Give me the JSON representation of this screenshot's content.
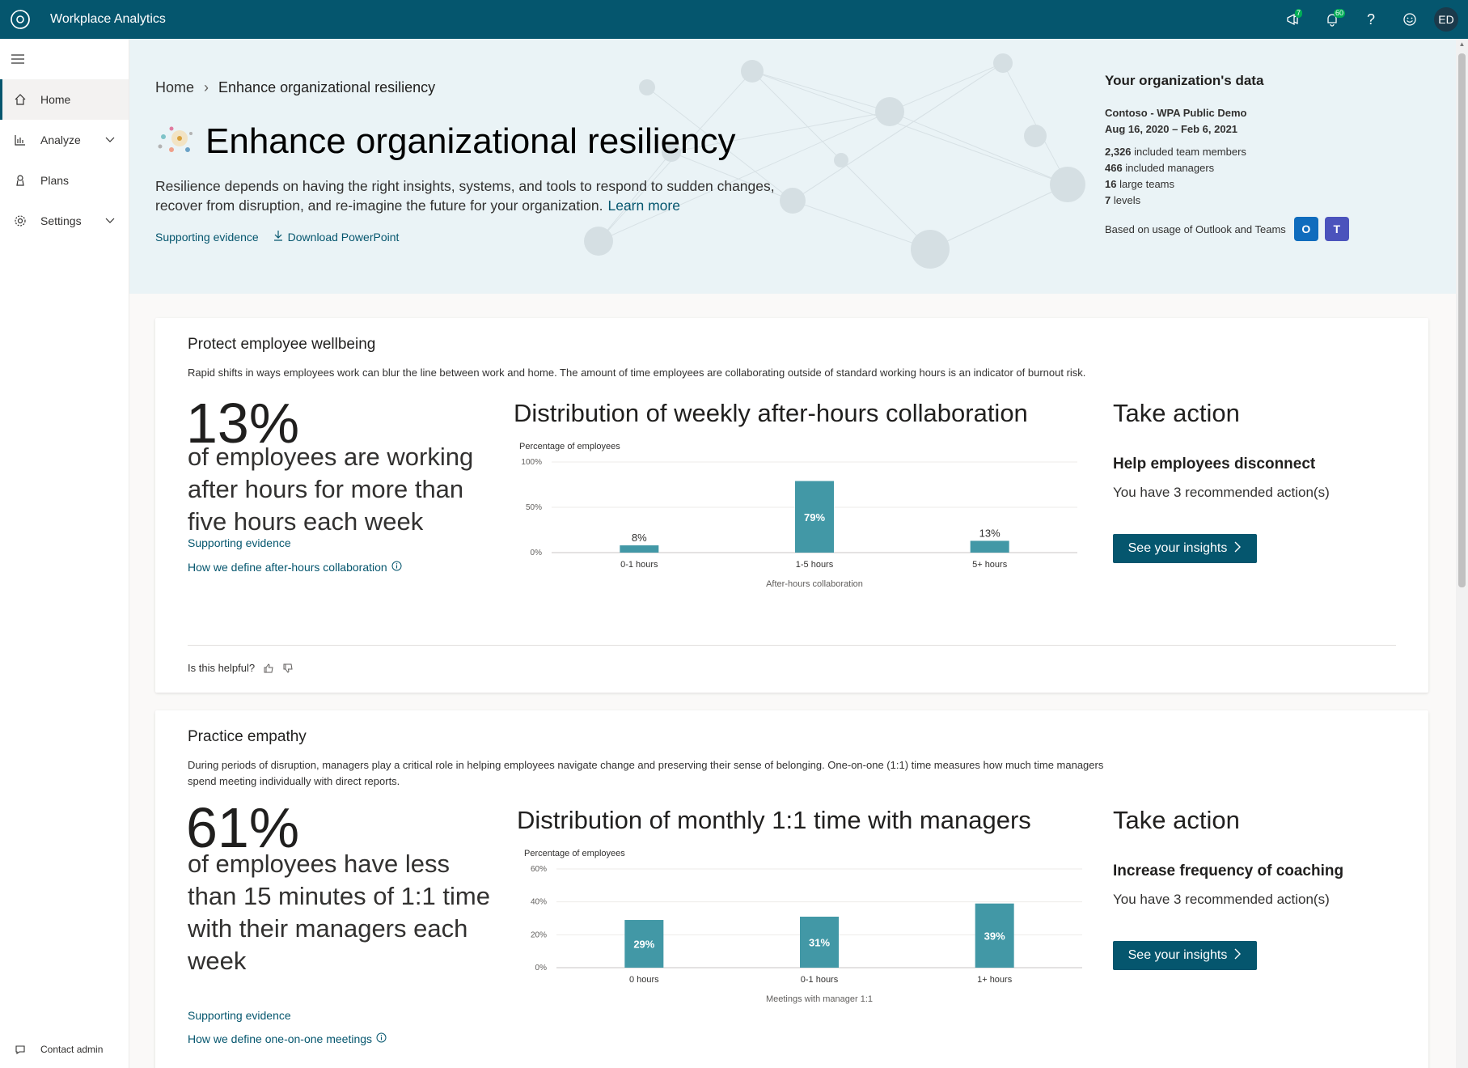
{
  "app": {
    "title": "Workplace Analytics",
    "announcements_badge": "7",
    "notifications_badge": "60",
    "user_initials": "ED"
  },
  "sidebar": {
    "items": [
      {
        "label": "Home",
        "icon": "home-icon"
      },
      {
        "label": "Analyze",
        "icon": "chart-icon"
      },
      {
        "label": "Plans",
        "icon": "plans-icon"
      },
      {
        "label": "Settings",
        "icon": "gear-icon"
      }
    ],
    "contact_admin": "Contact admin"
  },
  "breadcrumb": {
    "home": "Home",
    "current": "Enhance organizational resiliency"
  },
  "hero": {
    "title": "Enhance organizational resiliency",
    "description": "Resilience depends on having the right insights, systems, and tools to respond to sudden changes, recover from disruption, and re-imagine the future for your organization.",
    "learn_more": "Learn more",
    "supporting_evidence": "Supporting evidence",
    "download": "Download PowerPoint"
  },
  "org": {
    "title": "Your organization's data",
    "name": "Contoso - WPA Public Demo",
    "date_range": "Aug 16, 2020 – Feb 6, 2021",
    "stats": [
      {
        "value": "2,326",
        "label": "included team members"
      },
      {
        "value": "466",
        "label": "included managers"
      },
      {
        "value": "16",
        "label": "large teams"
      },
      {
        "value": "7",
        "label": "levels"
      }
    ],
    "usage": "Based on usage of Outlook and Teams",
    "outlook_letter": "O",
    "teams_letter": "T",
    "colors": {
      "outlook": "#0f6cbd",
      "teams": "#4b53bc"
    }
  },
  "cards": [
    {
      "title": "Protect employee wellbeing",
      "description": "Rapid shifts in ways employees work can blur the line between work and home. The amount of time employees are collaborating outside of standard working hours is an indicator of burnout risk.",
      "big_number": "13%",
      "big_text": "of employees are working after hours for more than five hours each week",
      "supporting_evidence": "Supporting evidence",
      "define_link": "How we define after-hours collaboration",
      "take_action": "Take action",
      "action_head": "Help employees disconnect",
      "action_sub": "You have 3 recommended action(s)",
      "button": "See your insights",
      "helpful": "Is this helpful?"
    },
    {
      "title": "Practice empathy",
      "description": "During periods of disruption, managers play a critical role in helping employees navigate change and preserving their sense of belonging. One-on-one (1:1) time measures how much time managers spend meeting individually with direct reports.",
      "big_number": "61%",
      "big_text": "of employees have less than 15 minutes of 1:1 time with their managers each week",
      "supporting_evidence": "Supporting evidence",
      "define_link": "How we define one-on-one meetings",
      "take_action": "Take action",
      "action_head": "Increase frequency of coaching",
      "action_sub": "You have 3 recommended action(s)",
      "button": "See your insights"
    }
  ],
  "chart_data": [
    {
      "type": "bar",
      "title": "Distribution of weekly after-hours collaboration",
      "ylabel": "Percentage of employees",
      "xlabel": "After-hours collaboration",
      "categories": [
        "0-1 hours",
        "1-5 hours",
        "5+ hours"
      ],
      "values": [
        8,
        79,
        13
      ],
      "value_labels": [
        "8%",
        "79%",
        "13%"
      ],
      "yticks": [
        "100%",
        "50%",
        "0%"
      ],
      "ylim": [
        0,
        100
      ],
      "grid": true,
      "color": "#4298a6"
    },
    {
      "type": "bar",
      "title": "Distribution of monthly 1:1 time with managers",
      "ylabel": "Percentage of employees",
      "xlabel": "Meetings with manager 1:1",
      "categories": [
        "0 hours",
        "0-1 hours",
        "1+ hours"
      ],
      "values": [
        29,
        31,
        39
      ],
      "value_labels": [
        "29%",
        "31%",
        "39%"
      ],
      "yticks": [
        "60%",
        "40%",
        "20%",
        "0%"
      ],
      "ylim": [
        0,
        60
      ],
      "grid": true,
      "color": "#4298a6"
    }
  ]
}
